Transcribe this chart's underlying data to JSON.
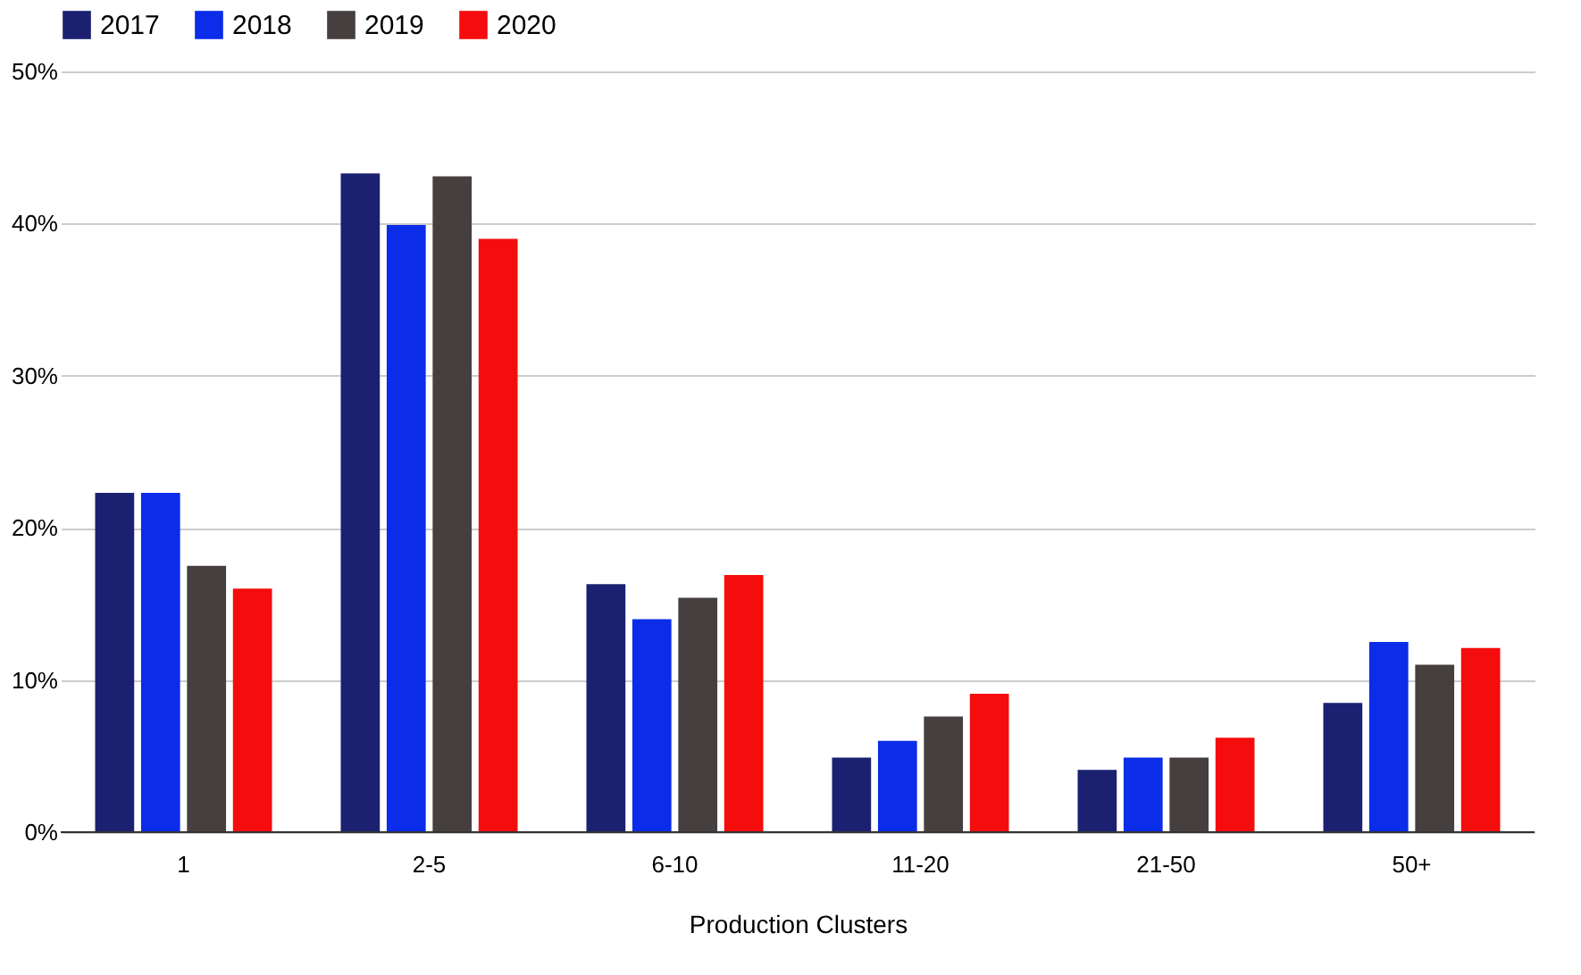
{
  "chart_data": {
    "type": "bar",
    "xlabel": "Production Clusters",
    "categories": [
      "1",
      "2-5",
      "6-10",
      "11-20",
      "21-50",
      "50+"
    ],
    "series": [
      {
        "name": "2017",
        "color": "#1b2170",
        "values": [
          22.3,
          43.3,
          16.3,
          4.9,
          4.1,
          8.5
        ]
      },
      {
        "name": "2018",
        "color": "#0b2ce8",
        "values": [
          22.3,
          39.9,
          14.0,
          6.0,
          4.9,
          12.5
        ]
      },
      {
        "name": "2019",
        "color": "#463f3f",
        "values": [
          17.5,
          43.1,
          15.4,
          7.6,
          4.9,
          11.0
        ]
      },
      {
        "name": "2020",
        "color": "#f50c0c",
        "values": [
          16.0,
          39.0,
          16.9,
          9.1,
          6.2,
          12.1
        ]
      }
    ],
    "ylim": [
      0,
      50
    ],
    "yticks": [
      {
        "value": 0,
        "label": "0%"
      },
      {
        "value": 10,
        "label": "10%"
      },
      {
        "value": 20,
        "label": "20%"
      },
      {
        "value": 30,
        "label": "30%"
      },
      {
        "value": 40,
        "label": "40%"
      },
      {
        "value": 50,
        "label": "50%"
      }
    ],
    "grid": "y",
    "legend": "top"
  }
}
